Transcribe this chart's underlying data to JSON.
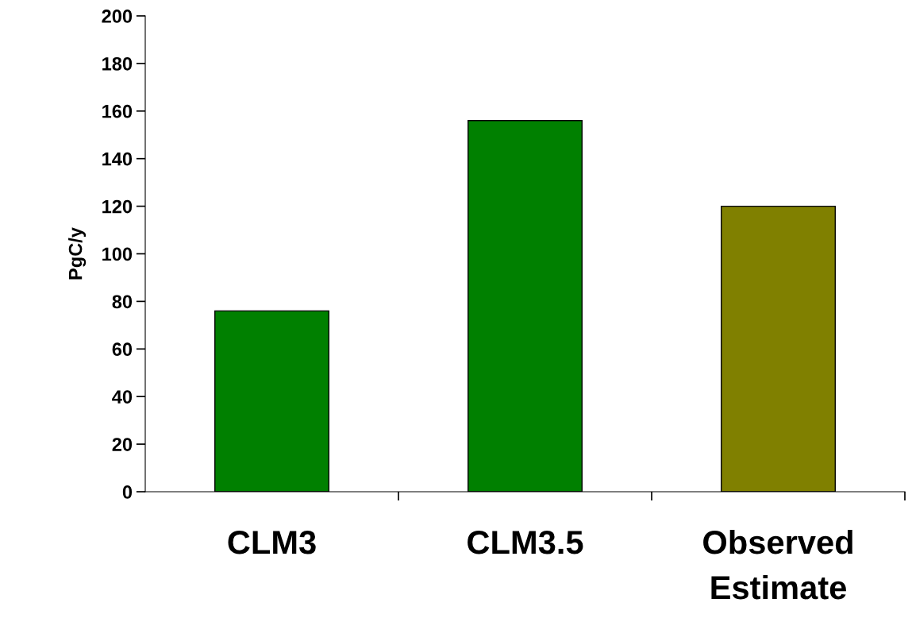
{
  "chart_data": {
    "type": "bar",
    "ylabel": "PgC/y",
    "categories": [
      "CLM3",
      "CLM3.5",
      "Observed\nEstimate"
    ],
    "values": [
      76,
      156,
      120
    ],
    "colors": [
      "#008000",
      "#008000",
      "#808000"
    ],
    "ylim": [
      0,
      200
    ],
    "yticks": [
      0,
      20,
      40,
      60,
      80,
      100,
      120,
      140,
      160,
      180,
      200
    ],
    "grid": false,
    "legend": false
  }
}
